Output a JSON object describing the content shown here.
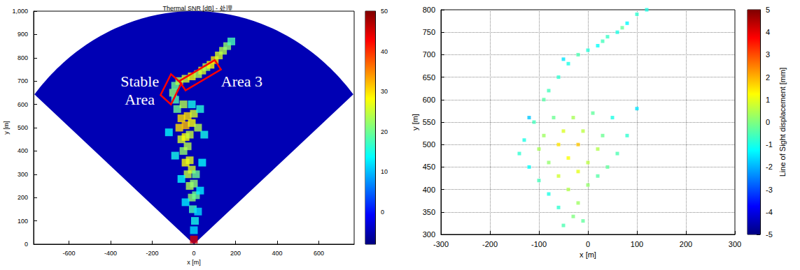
{
  "chart_data": [
    {
      "type": "scatter",
      "title": "Thermal SNR [dB] - 处理",
      "xlabel": "x [m]",
      "ylabel": "y [m]",
      "xlim": [
        -770,
        770
      ],
      "xticks": [
        -600,
        -400,
        -200,
        0,
        200,
        400,
        600
      ],
      "ylim": [
        0,
        1000
      ],
      "yticks": [
        0,
        100,
        200,
        300,
        400,
        500,
        600,
        700,
        800,
        900,
        1000
      ],
      "grid": false,
      "sector": {
        "origin": [
          0,
          0
        ],
        "radius": 1000,
        "angles": [
          -50,
          50
        ],
        "value": -5
      },
      "points": [
        [
          0,
          20,
          45
        ],
        [
          0,
          60,
          12
        ],
        [
          5,
          100,
          15
        ],
        [
          -5,
          150,
          18
        ],
        [
          -10,
          200,
          22
        ],
        [
          10,
          210,
          20
        ],
        [
          -20,
          250,
          24
        ],
        [
          0,
          260,
          22
        ],
        [
          -30,
          300,
          25
        ],
        [
          -10,
          320,
          26
        ],
        [
          10,
          300,
          20
        ],
        [
          -40,
          350,
          28
        ],
        [
          -20,
          360,
          27
        ],
        [
          -50,
          400,
          22
        ],
        [
          -30,
          420,
          24
        ],
        [
          -60,
          450,
          26
        ],
        [
          -40,
          460,
          28
        ],
        [
          -20,
          470,
          25
        ],
        [
          -70,
          500,
          30
        ],
        [
          -40,
          510,
          32
        ],
        [
          -10,
          520,
          28
        ],
        [
          20,
          500,
          24
        ],
        [
          -60,
          540,
          30
        ],
        [
          -30,
          550,
          30
        ],
        [
          0,
          560,
          26
        ],
        [
          -80,
          580,
          20
        ],
        [
          -50,
          600,
          24
        ],
        [
          -90,
          620,
          18
        ],
        [
          -100,
          650,
          22
        ],
        [
          -90,
          680,
          20
        ],
        [
          -70,
          700,
          24
        ],
        [
          -40,
          710,
          26
        ],
        [
          -10,
          720,
          28
        ],
        [
          20,
          730,
          24
        ],
        [
          40,
          745,
          26
        ],
        [
          60,
          760,
          24
        ],
        [
          80,
          770,
          28
        ],
        [
          100,
          790,
          30
        ],
        [
          120,
          810,
          26
        ],
        [
          140,
          830,
          24
        ],
        [
          160,
          850,
          22
        ],
        [
          180,
          870,
          18
        ],
        [
          -10,
          600,
          15
        ],
        [
          30,
          580,
          16
        ],
        [
          -120,
          480,
          14
        ],
        [
          50,
          470,
          15
        ],
        [
          -90,
          380,
          15
        ],
        [
          40,
          350,
          14
        ],
        [
          -60,
          280,
          14
        ],
        [
          30,
          230,
          13
        ],
        [
          -40,
          180,
          13
        ],
        [
          20,
          140,
          12
        ]
      ],
      "colorbar": {
        "lim": [
          -8,
          50
        ],
        "ticks": [
          0,
          10,
          20,
          30,
          40,
          50
        ]
      },
      "annotations": [
        {
          "text": "Stable Area",
          "color": "#ff0000",
          "box": [
            [
              -160,
              640
            ],
            [
              -110,
              600
            ],
            [
              -60,
              690
            ],
            [
              -110,
              730
            ]
          ],
          "label_xy": [
            -260,
            660
          ]
        },
        {
          "text": "Area 3",
          "color": "#ff0000",
          "box": [
            [
              -70,
              700
            ],
            [
              -40,
              660
            ],
            [
              130,
              750
            ],
            [
              100,
              790
            ]
          ],
          "label_xy": [
            230,
            700
          ]
        }
      ]
    },
    {
      "type": "scatter",
      "xlabel": "x [m]",
      "ylabel": "y [m]",
      "xlim": [
        -300,
        300
      ],
      "xticks": [
        -300,
        -200,
        -100,
        0,
        100,
        200,
        300
      ],
      "ylim": [
        300,
        800
      ],
      "yticks": [
        300,
        350,
        400,
        450,
        500,
        550,
        600,
        650,
        700,
        750,
        800
      ],
      "grid": true,
      "points": [
        [
          -50,
          320,
          -0.5
        ],
        [
          -30,
          340,
          0
        ],
        [
          -60,
          360,
          -0.8
        ],
        [
          -20,
          370,
          0.3
        ],
        [
          -80,
          390,
          -1
        ],
        [
          -40,
          400,
          0.5
        ],
        [
          0,
          410,
          0.2
        ],
        [
          -100,
          420,
          -0.6
        ],
        [
          -60,
          430,
          0.8
        ],
        [
          -20,
          440,
          1
        ],
        [
          20,
          430,
          -0.4
        ],
        [
          -120,
          450,
          -1.2
        ],
        [
          -80,
          460,
          0.2
        ],
        [
          -40,
          470,
          1.2
        ],
        [
          0,
          460,
          0.6
        ],
        [
          40,
          450,
          -0.3
        ],
        [
          -140,
          480,
          -0.8
        ],
        [
          -100,
          490,
          0.4
        ],
        [
          -60,
          500,
          1.5
        ],
        [
          -20,
          500,
          1.8
        ],
        [
          20,
          490,
          0.5
        ],
        [
          60,
          480,
          -0.5
        ],
        [
          -130,
          510,
          -1
        ],
        [
          -90,
          520,
          0.3
        ],
        [
          -50,
          530,
          0.9
        ],
        [
          -10,
          530,
          0.6
        ],
        [
          30,
          520,
          -0.2
        ],
        [
          80,
          520,
          -0.8
        ],
        [
          -110,
          550,
          -0.6
        ],
        [
          -70,
          560,
          -0.2
        ],
        [
          -30,
          560,
          0.4
        ],
        [
          10,
          570,
          -0.3
        ],
        [
          50,
          560,
          -1
        ],
        [
          100,
          580,
          -1.5
        ],
        [
          -80,
          620,
          -0.6
        ],
        [
          -60,
          650,
          -0.8
        ],
        [
          -40,
          680,
          -1
        ],
        [
          -20,
          700,
          -0.5
        ],
        [
          0,
          710,
          -0.9
        ],
        [
          20,
          720,
          -1.2
        ],
        [
          40,
          740,
          -0.7
        ],
        [
          60,
          750,
          -1
        ],
        [
          80,
          770,
          -1.3
        ],
        [
          100,
          790,
          -0.8
        ],
        [
          120,
          800,
          -1
        ],
        [
          -90,
          600,
          -0.4
        ],
        [
          -50,
          690,
          -1.5
        ],
        [
          30,
          730,
          -0.6
        ],
        [
          70,
          760,
          -0.3
        ],
        [
          -10,
          330,
          -0.3
        ],
        [
          -120,
          560,
          -1.8
        ]
      ],
      "colorbar": {
        "lim": [
          -5,
          5
        ],
        "ticks": [
          -5,
          -4,
          -3,
          -2,
          -1,
          0,
          1,
          2,
          3,
          4,
          5
        ],
        "label": "Line of Sight displacement [mm]"
      }
    }
  ]
}
